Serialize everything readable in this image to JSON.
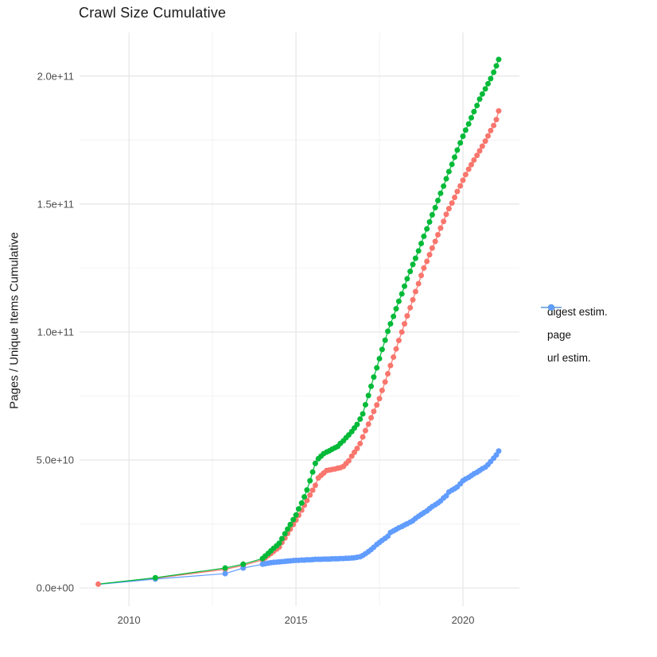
{
  "chart_data": {
    "type": "scatter",
    "title": "Crawl Size Cumulative",
    "xlabel": "",
    "ylabel": "Pages / Unique Items Cumulative",
    "background": "#FFFFFF",
    "grid": true,
    "grid_major_color": "#E3E3E3",
    "grid_minor_color": "#F0F0F0",
    "tick_label_color": "#4d4d4d",
    "legend_position": "right",
    "value_unit": 1000000000,
    "xlim": [
      2008.52,
      2021.69
    ],
    "ylim": [
      -7.1,
      217
    ],
    "x_ticks": [
      {
        "value": 2010,
        "label": "2010"
      },
      {
        "value": 2015,
        "label": "2015"
      },
      {
        "value": 2020,
        "label": "2020"
      }
    ],
    "x_minor_ticks": [
      2012.5,
      2017.5
    ],
    "y_ticks": [
      {
        "value": 0,
        "label": "0.0e+00"
      },
      {
        "value": 50,
        "label": "5.0e+10"
      },
      {
        "value": 100,
        "label": "1.0e+11"
      },
      {
        "value": 150,
        "label": "1.5e+11"
      },
      {
        "value": 200,
        "label": "2.0e+11"
      }
    ],
    "y_minor_ticks": [
      25,
      75,
      125,
      175
    ],
    "draw_order": [
      0,
      2,
      1
    ],
    "series": [
      {
        "name": "digest estim.",
        "color": "#F8766D",
        "first_dot": true,
        "points": [
          [
            2009.08,
            1.5
          ],
          [
            2010.79,
            3.8
          ],
          [
            2012.88,
            7.3
          ],
          [
            2013.42,
            8.8
          ],
          [
            2014.0,
            11.0
          ],
          [
            2014.08,
            11.8
          ],
          [
            2014.17,
            12.7
          ],
          [
            2014.25,
            13.5
          ],
          [
            2014.33,
            14.3
          ],
          [
            2014.42,
            15.2
          ],
          [
            2014.5,
            16.0
          ],
          [
            2014.58,
            17.8
          ],
          [
            2014.67,
            19.5
          ],
          [
            2014.75,
            21.3
          ],
          [
            2014.83,
            23.0
          ],
          [
            2014.92,
            24.8
          ],
          [
            2015.0,
            26.5
          ],
          [
            2015.08,
            28.4
          ],
          [
            2015.17,
            30.4
          ],
          [
            2015.25,
            32.3
          ],
          [
            2015.33,
            34.2
          ],
          [
            2015.42,
            36.3
          ],
          [
            2015.5,
            38.2
          ],
          [
            2015.58,
            40.1
          ],
          [
            2015.67,
            43.0
          ],
          [
            2015.75,
            44.0
          ],
          [
            2015.83,
            44.9
          ],
          [
            2015.92,
            45.9
          ],
          [
            2016.0,
            46.1
          ],
          [
            2016.08,
            46.3
          ],
          [
            2016.17,
            46.5
          ],
          [
            2016.25,
            46.8
          ],
          [
            2016.33,
            47.0
          ],
          [
            2016.42,
            47.5
          ],
          [
            2016.5,
            48.6
          ],
          [
            2016.58,
            49.7
          ],
          [
            2016.67,
            51.5
          ],
          [
            2016.75,
            53.0
          ],
          [
            2016.83,
            54.5
          ],
          [
            2016.92,
            56.4
          ],
          [
            2017.0,
            59.0
          ],
          [
            2017.08,
            61.5
          ],
          [
            2017.17,
            64.0
          ],
          [
            2017.25,
            66.5
          ],
          [
            2017.33,
            69.0
          ],
          [
            2017.42,
            71.5
          ],
          [
            2017.5,
            74.0
          ],
          [
            2017.58,
            77.2
          ],
          [
            2017.67,
            80.5
          ],
          [
            2017.75,
            83.7
          ],
          [
            2017.83,
            86.9
          ],
          [
            2017.92,
            90.2
          ],
          [
            2018.0,
            93.4
          ],
          [
            2018.08,
            96.7
          ],
          [
            2018.17,
            100.0
          ],
          [
            2018.25,
            103.2
          ],
          [
            2018.33,
            106.3
          ],
          [
            2018.42,
            109.5
          ],
          [
            2018.5,
            112.6
          ],
          [
            2018.58,
            115.8
          ],
          [
            2018.67,
            118.9
          ],
          [
            2018.75,
            122.1
          ],
          [
            2018.83,
            125.0
          ],
          [
            2018.92,
            127.6
          ],
          [
            2019.0,
            130.2
          ],
          [
            2019.08,
            132.8
          ],
          [
            2019.17,
            135.4
          ],
          [
            2019.25,
            138.0
          ],
          [
            2019.33,
            140.6
          ],
          [
            2019.42,
            143.2
          ],
          [
            2019.5,
            146.0
          ],
          [
            2019.58,
            148.2
          ],
          [
            2019.67,
            150.4
          ],
          [
            2019.75,
            152.6
          ],
          [
            2019.83,
            154.9
          ],
          [
            2019.92,
            157.1
          ],
          [
            2020.0,
            159.3
          ],
          [
            2020.08,
            161.5
          ],
          [
            2020.17,
            163.6
          ],
          [
            2020.25,
            165.4
          ],
          [
            2020.33,
            167.2
          ],
          [
            2020.42,
            169.0
          ],
          [
            2020.5,
            170.8
          ],
          [
            2020.58,
            172.6
          ],
          [
            2020.67,
            174.6
          ],
          [
            2020.75,
            176.6
          ],
          [
            2020.83,
            178.7
          ],
          [
            2020.92,
            180.7
          ],
          [
            2021.0,
            183.0
          ],
          [
            2021.07,
            186.4
          ]
        ]
      },
      {
        "name": "page",
        "color": "#00BA38",
        "first_dot": false,
        "points": [
          [
            2009.08,
            1.5
          ],
          [
            2010.79,
            4.0
          ],
          [
            2012.88,
            7.8
          ],
          [
            2013.42,
            9.3
          ],
          [
            2014.0,
            11.5
          ],
          [
            2014.08,
            12.5
          ],
          [
            2014.17,
            13.5
          ],
          [
            2014.25,
            14.5
          ],
          [
            2014.33,
            15.5
          ],
          [
            2014.42,
            16.5
          ],
          [
            2014.5,
            17.5
          ],
          [
            2014.58,
            19.3
          ],
          [
            2014.67,
            21.2
          ],
          [
            2014.75,
            23.0
          ],
          [
            2014.83,
            24.8
          ],
          [
            2014.92,
            26.7
          ],
          [
            2015.0,
            28.5
          ],
          [
            2015.08,
            30.9
          ],
          [
            2015.17,
            33.2
          ],
          [
            2015.25,
            35.6
          ],
          [
            2015.33,
            38.3
          ],
          [
            2015.42,
            41.9
          ],
          [
            2015.5,
            45.3
          ],
          [
            2015.58,
            48.7
          ],
          [
            2015.67,
            50.5
          ],
          [
            2015.75,
            51.5
          ],
          [
            2015.83,
            52.5
          ],
          [
            2015.92,
            53.1
          ],
          [
            2016.0,
            53.6
          ],
          [
            2016.08,
            54.2
          ],
          [
            2016.17,
            54.8
          ],
          [
            2016.25,
            55.3
          ],
          [
            2016.33,
            56.5
          ],
          [
            2016.42,
            57.5
          ],
          [
            2016.5,
            58.7
          ],
          [
            2016.58,
            59.8
          ],
          [
            2016.67,
            61.1
          ],
          [
            2016.75,
            62.5
          ],
          [
            2016.83,
            63.9
          ],
          [
            2016.92,
            66.0
          ],
          [
            2017.0,
            68.0
          ],
          [
            2017.08,
            71.6
          ],
          [
            2017.17,
            75.2
          ],
          [
            2017.25,
            78.8
          ],
          [
            2017.33,
            82.4
          ],
          [
            2017.42,
            86.0
          ],
          [
            2017.5,
            89.6
          ],
          [
            2017.58,
            93.2
          ],
          [
            2017.67,
            96.8
          ],
          [
            2017.75,
            100.3
          ],
          [
            2017.83,
            103.2
          ],
          [
            2017.92,
            106.1
          ],
          [
            2018.0,
            109.1
          ],
          [
            2018.08,
            112.0
          ],
          [
            2018.17,
            114.9
          ],
          [
            2018.25,
            117.9
          ],
          [
            2018.33,
            120.8
          ],
          [
            2018.42,
            123.7
          ],
          [
            2018.5,
            126.4
          ],
          [
            2018.58,
            128.8
          ],
          [
            2018.67,
            131.7
          ],
          [
            2018.75,
            134.6
          ],
          [
            2018.83,
            137.4
          ],
          [
            2018.92,
            140.3
          ],
          [
            2019.0,
            143.0
          ],
          [
            2019.08,
            145.8
          ],
          [
            2019.17,
            148.6
          ],
          [
            2019.25,
            151.4
          ],
          [
            2019.33,
            154.2
          ],
          [
            2019.42,
            157.0
          ],
          [
            2019.5,
            159.9
          ],
          [
            2019.58,
            162.7
          ],
          [
            2019.67,
            165.5
          ],
          [
            2019.75,
            168.3
          ],
          [
            2019.83,
            171.1
          ],
          [
            2019.92,
            173.9
          ],
          [
            2020.0,
            176.5
          ],
          [
            2020.08,
            178.9
          ],
          [
            2020.17,
            181.3
          ],
          [
            2020.25,
            183.7
          ],
          [
            2020.33,
            186.1
          ],
          [
            2020.42,
            188.5
          ],
          [
            2020.5,
            191.0
          ],
          [
            2020.58,
            193.0
          ],
          [
            2020.67,
            195.0
          ],
          [
            2020.75,
            197.0
          ],
          [
            2020.83,
            199.0
          ],
          [
            2020.92,
            201.5
          ],
          [
            2021.0,
            204.0
          ],
          [
            2021.07,
            206.5
          ]
        ]
      },
      {
        "name": "url estim.",
        "color": "#619CFF",
        "first_dot": false,
        "points": [
          [
            2009.08,
            1.4
          ],
          [
            2010.79,
            3.5
          ],
          [
            2012.88,
            5.6
          ],
          [
            2013.42,
            7.8
          ],
          [
            2014.0,
            9.3
          ],
          [
            2014.08,
            9.5
          ],
          [
            2014.17,
            9.7
          ],
          [
            2014.25,
            9.9
          ],
          [
            2014.33,
            10.0
          ],
          [
            2014.42,
            10.1
          ],
          [
            2014.5,
            10.2
          ],
          [
            2014.58,
            10.3
          ],
          [
            2014.67,
            10.4
          ],
          [
            2014.75,
            10.5
          ],
          [
            2014.83,
            10.6
          ],
          [
            2014.92,
            10.7
          ],
          [
            2015.0,
            10.8
          ],
          [
            2015.08,
            10.8
          ],
          [
            2015.17,
            10.9
          ],
          [
            2015.25,
            10.9
          ],
          [
            2015.33,
            11.0
          ],
          [
            2015.42,
            11.0
          ],
          [
            2015.5,
            11.1
          ],
          [
            2015.58,
            11.2
          ],
          [
            2015.67,
            11.2
          ],
          [
            2015.75,
            11.2
          ],
          [
            2015.83,
            11.3
          ],
          [
            2015.92,
            11.3
          ],
          [
            2016.0,
            11.3
          ],
          [
            2016.08,
            11.4
          ],
          [
            2016.17,
            11.4
          ],
          [
            2016.25,
            11.4
          ],
          [
            2016.33,
            11.5
          ],
          [
            2016.42,
            11.5
          ],
          [
            2016.5,
            11.6
          ],
          [
            2016.58,
            11.6
          ],
          [
            2016.67,
            11.7
          ],
          [
            2016.75,
            11.8
          ],
          [
            2016.83,
            12.0
          ],
          [
            2016.92,
            12.2
          ],
          [
            2017.0,
            12.7
          ],
          [
            2017.08,
            13.4
          ],
          [
            2017.17,
            14.2
          ],
          [
            2017.25,
            15.0
          ],
          [
            2017.33,
            15.9
          ],
          [
            2017.42,
            17.0
          ],
          [
            2017.5,
            17.8
          ],
          [
            2017.58,
            18.6
          ],
          [
            2017.67,
            19.4
          ],
          [
            2017.75,
            20.2
          ],
          [
            2017.83,
            21.7
          ],
          [
            2017.92,
            22.3
          ],
          [
            2018.0,
            22.9
          ],
          [
            2018.08,
            23.5
          ],
          [
            2018.17,
            24.0
          ],
          [
            2018.25,
            24.6
          ],
          [
            2018.33,
            25.1
          ],
          [
            2018.42,
            25.7
          ],
          [
            2018.5,
            26.3
          ],
          [
            2018.58,
            27.2
          ],
          [
            2018.67,
            28.0
          ],
          [
            2018.75,
            28.7
          ],
          [
            2018.83,
            29.4
          ],
          [
            2018.92,
            30.1
          ],
          [
            2019.0,
            31.0
          ],
          [
            2019.08,
            31.8
          ],
          [
            2019.17,
            32.5
          ],
          [
            2019.25,
            33.2
          ],
          [
            2019.33,
            34.0
          ],
          [
            2019.42,
            35.2
          ],
          [
            2019.5,
            36.0
          ],
          [
            2019.58,
            37.5
          ],
          [
            2019.67,
            38.2
          ],
          [
            2019.75,
            38.8
          ],
          [
            2019.83,
            39.5
          ],
          [
            2019.92,
            40.7
          ],
          [
            2020.0,
            41.9
          ],
          [
            2020.08,
            42.6
          ],
          [
            2020.17,
            43.2
          ],
          [
            2020.25,
            43.9
          ],
          [
            2020.33,
            44.6
          ],
          [
            2020.42,
            45.2
          ],
          [
            2020.5,
            45.9
          ],
          [
            2020.58,
            46.6
          ],
          [
            2020.67,
            47.2
          ],
          [
            2020.75,
            48.2
          ],
          [
            2020.83,
            49.4
          ],
          [
            2020.92,
            50.7
          ],
          [
            2021.0,
            52.0
          ],
          [
            2021.07,
            53.5
          ]
        ]
      }
    ]
  }
}
